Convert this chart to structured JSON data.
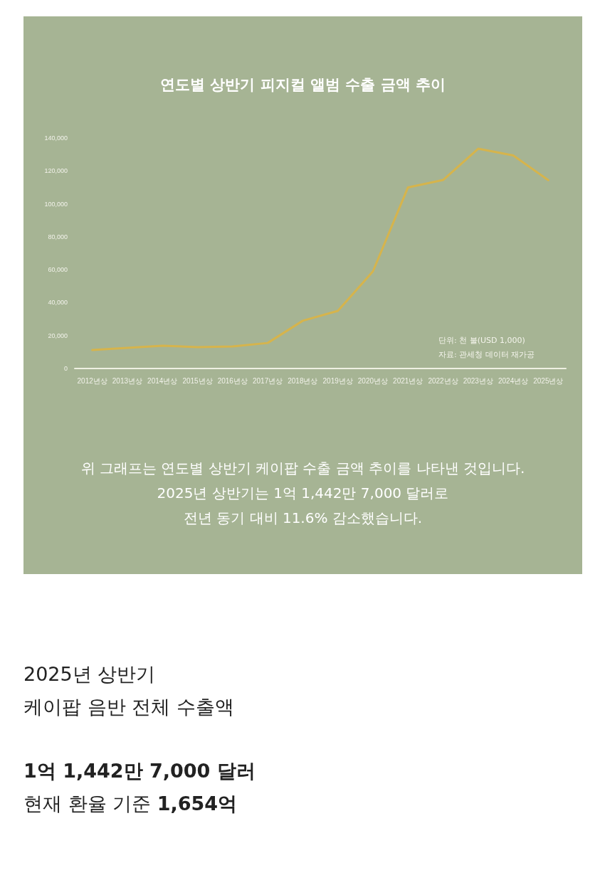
{
  "chart_data": {
    "type": "line",
    "title": "연도별 상반기 피지컬 앨범 수출 금액 추이",
    "categories": [
      "2012년상",
      "2013년상",
      "2014년상",
      "2015년상",
      "2016년상",
      "2017년상",
      "2018년상",
      "2019년상",
      "2020년상",
      "2021년상",
      "2022년상",
      "2023년상",
      "2024년상",
      "2025년상"
    ],
    "series": [
      {
        "color": "#d6b44c",
        "values": [
          11200,
          12500,
          13800,
          13000,
          13400,
          15500,
          29000,
          35000,
          59000,
          110000,
          114500,
          133500,
          129400,
          114400
        ]
      }
    ],
    "ylim": [
      0,
      140000
    ],
    "yticks": [
      {
        "value": 0,
        "label": "0"
      },
      {
        "value": 20000,
        "label": "20,000"
      },
      {
        "value": 40000,
        "label": "40,000"
      },
      {
        "value": 60000,
        "label": "60,000"
      },
      {
        "value": 80000,
        "label": "80,000"
      },
      {
        "value": 100000,
        "label": "100,000"
      },
      {
        "value": 120000,
        "label": "120,000"
      },
      {
        "value": 140000,
        "label": "140,000"
      }
    ],
    "grid": false,
    "marker": "none",
    "line_style": "solid",
    "annotations": [
      "단위: 천 불(USD 1,000)",
      "자료: 관세청 데이터 재가공",
      "위 그래프는 연도별 상반기 케이팝 수출 금액 추이를 나타낸 것입니다.",
      "2025년 상반기는 1억 1,442만 7,000 달러로",
      "전년 동기 대비 11.6% 감소했습니다.",
      "2025년 상반기",
      "케이팝 음반 전체 수출액",
      "1억 1,442만 7,000 달러",
      "현재 환율 기준",
      "1,654억"
    ]
  }
}
